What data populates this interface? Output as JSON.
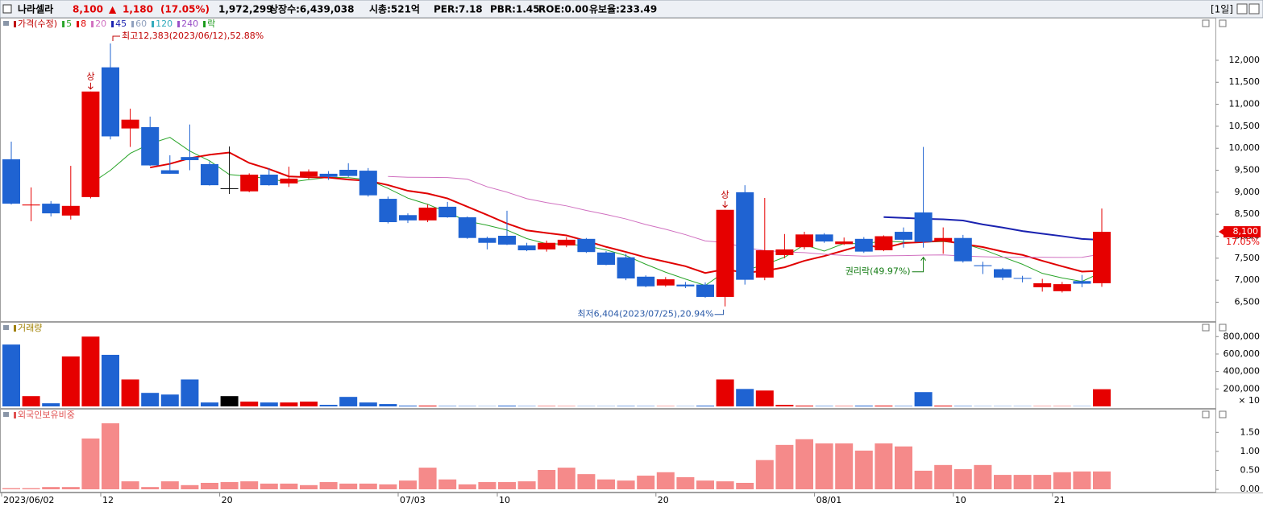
{
  "header": {
    "name": "나라셀라",
    "price": "8,100",
    "arrow": "▲",
    "change": "1,180",
    "change_pct": "(17.05%)",
    "volume": "1,972,299",
    "listed": "상장수:6,439,038",
    "market_cap": "시총:521억",
    "per": "PER:7.18",
    "pbr": "PBR:1.45",
    "roe": "ROE:0.00",
    "retention": "유보율:233.49",
    "period": "[1일]"
  },
  "chart_data": [
    {
      "type": "candlestick",
      "title": "가격(수정)",
      "categories": [
        "2023/06/02",
        null,
        null,
        null,
        null,
        "12",
        null,
        null,
        null,
        null,
        null,
        "20",
        null,
        null,
        null,
        null,
        null,
        null,
        null,
        null,
        "07/03",
        null,
        null,
        null,
        null,
        "10",
        null,
        null,
        null,
        null,
        null,
        null,
        null,
        "20",
        null,
        null,
        null,
        null,
        null,
        null,
        null,
        "08/01",
        null,
        null,
        null,
        null,
        null,
        null,
        "10",
        null,
        null,
        null,
        null,
        "21",
        null,
        null
      ],
      "open": [
        9750,
        8700,
        8740,
        8470,
        8890,
        11840,
        10450,
        10480,
        9500,
        9800,
        9640,
        9090,
        9020,
        9400,
        9200,
        9360,
        9420,
        9510,
        9490,
        8850,
        8480,
        8360,
        8670,
        8430,
        7960,
        8010,
        7790,
        7700,
        7790,
        7940,
        7630,
        7520,
        7080,
        6880,
        6900,
        6900,
        6620,
        9000,
        7060,
        7570,
        7750,
        8040,
        7820,
        7940,
        7680,
        8100,
        8540,
        7880,
        7960,
        7340,
        7250,
        7050,
        6840,
        6750,
        6980,
        6930
      ],
      "high": [
        10150,
        9110,
        8800,
        9600,
        11290,
        12383,
        10900,
        10720,
        9840,
        10540,
        9700,
        10040,
        9430,
        9550,
        9580,
        9520,
        9480,
        9660,
        9550,
        8900,
        8520,
        8720,
        8780,
        8450,
        7990,
        8580,
        7850,
        7900,
        7980,
        7960,
        7660,
        7600,
        7110,
        7070,
        6960,
        6950,
        8600,
        9160,
        8870,
        8050,
        8100,
        8070,
        7970,
        7980,
        8020,
        8200,
        10030,
        8200,
        8030,
        7420,
        7280,
        7100,
        7030,
        6960,
        7120,
        8630
      ],
      "low": [
        8720,
        8340,
        8450,
        8380,
        8860,
        10200,
        10030,
        9600,
        9420,
        9500,
        9150,
        8960,
        9000,
        9150,
        9120,
        9300,
        9280,
        9350,
        8900,
        8290,
        8300,
        8320,
        8420,
        7940,
        7700,
        7800,
        7660,
        7650,
        7750,
        7620,
        7340,
        7000,
        6840,
        6850,
        6820,
        6600,
        6404,
        6900,
        7000,
        7500,
        7700,
        7850,
        7800,
        7620,
        7660,
        7740,
        7740,
        7600,
        7400,
        7140,
        7000,
        6950,
        6740,
        6720,
        6840,
        6850
      ],
      "close": [
        8740,
        8720,
        8520,
        8690,
        11290,
        10270,
        10650,
        9610,
        9420,
        9730,
        9160,
        9090,
        9400,
        9160,
        9310,
        9470,
        9350,
        9370,
        8930,
        8320,
        8360,
        8650,
        8430,
        7960,
        7850,
        7810,
        7680,
        7850,
        7920,
        7640,
        7350,
        7040,
        6860,
        7020,
        6860,
        6620,
        8600,
        7010,
        7680,
        7700,
        8040,
        7880,
        7880,
        7650,
        8000,
        7920,
        7870,
        7960,
        7430,
        7320,
        7060,
        7040,
        6930,
        6910,
        6920,
        8100
      ],
      "up_color": "#e60000",
      "down_color": "#1f63d2",
      "flat_color": "#000000",
      "title_color": "#c00000",
      "moving_averages": [
        {
          "period": 5,
          "color": "#2aa52a",
          "width": 1
        },
        {
          "period": 8,
          "color": "#e00000",
          "width": 2
        },
        {
          "period": 20,
          "color": "#d070c0",
          "width": 1
        },
        {
          "period": 45,
          "color": "#1a22b0",
          "width": 2
        },
        {
          "period": 60,
          "color": "#8fa0bd",
          "width": 1
        },
        {
          "period": 120,
          "color": "#30aabb",
          "width": 1
        },
        {
          "period": 240,
          "color": "#9a50c8",
          "width": 1
        }
      ],
      "ex_rights_label": "락",
      "ex_rights_color": "#1a9a1a",
      "ylim": [
        6070,
        12950
      ],
      "yticks": [
        {
          "value": 6500,
          "label": "6,500"
        },
        {
          "value": 7000,
          "label": "7,000"
        },
        {
          "value": 7500,
          "label": "7,500"
        },
        {
          "value": 8000,
          "label": "8,000"
        },
        {
          "value": 8500,
          "label": "8,500"
        },
        {
          "value": 9000,
          "label": "9,000"
        },
        {
          "value": 9500,
          "label": "9,500"
        },
        {
          "value": 10000,
          "label": "10,000"
        },
        {
          "value": 10500,
          "label": "10,500"
        },
        {
          "value": 11000,
          "label": "11,000"
        },
        {
          "value": 11500,
          "label": "11,500"
        },
        {
          "value": 12000,
          "label": "12,000"
        }
      ],
      "current_price": {
        "value": 8100,
        "label": "8,100",
        "change": "17.05%"
      },
      "annotations": [
        {
          "kind": "high",
          "index": 5,
          "text": "최고12,383(2023/06/12),52.88%",
          "color": "#c00000"
        },
        {
          "kind": "limit",
          "index": 4,
          "text": "상",
          "color": "#c00000"
        },
        {
          "kind": "limit",
          "index": 36,
          "text": "상",
          "color": "#c00000"
        },
        {
          "kind": "low",
          "index": 36,
          "text": "최저6,404(2023/07/25),20.94%",
          "color": "#2a5aa8"
        },
        {
          "kind": "ex-rights",
          "index": 46,
          "text": "권리락(49.97%)",
          "color": "#107a10"
        }
      ]
    },
    {
      "type": "bar",
      "title": "거래량",
      "title_color": "#a08000",
      "values": [
        709000,
        118000,
        36000,
        573000,
        800000,
        591000,
        309000,
        155000,
        136000,
        309000,
        45000,
        118000,
        55000,
        45000,
        45000,
        55000,
        18000,
        109000,
        45000,
        27000,
        9000,
        9000,
        5000,
        4000,
        3000,
        9000,
        4000,
        4000,
        3000,
        3000,
        3000,
        5000,
        4000,
        3000,
        3000,
        9000,
        309000,
        200000,
        182000,
        18000,
        9000,
        5000,
        4000,
        9000,
        9000,
        5000,
        164000,
        9000,
        5000,
        3000,
        3000,
        3000,
        3000,
        3000,
        3000,
        197000
      ],
      "ylim": [
        0,
        950000
      ],
      "yticks": [
        {
          "value": 200000,
          "label": "200,000"
        },
        {
          "value": 400000,
          "label": "400,000"
        },
        {
          "value": 600000,
          "label": "600,000"
        },
        {
          "value": 800000,
          "label": "800,000"
        }
      ],
      "unit_label": "× 10"
    },
    {
      "type": "bar",
      "title": "외국인보유비중",
      "title_color": "#e05050",
      "color": "#f58a8a",
      "values": [
        0.03,
        0.03,
        0.06,
        0.06,
        1.34,
        1.74,
        0.21,
        0.06,
        0.21,
        0.11,
        0.17,
        0.19,
        0.21,
        0.15,
        0.15,
        0.11,
        0.19,
        0.15,
        0.15,
        0.13,
        0.23,
        0.57,
        0.26,
        0.13,
        0.19,
        0.19,
        0.21,
        0.51,
        0.57,
        0.4,
        0.26,
        0.23,
        0.36,
        0.45,
        0.32,
        0.23,
        0.21,
        0.17,
        0.77,
        1.17,
        1.32,
        1.21,
        1.21,
        1.02,
        1.21,
        1.13,
        0.49,
        0.64,
        0.53,
        0.64,
        0.38,
        0.38,
        0.38,
        0.45,
        0.47,
        0.47
      ],
      "ylim": [
        0,
        2.1
      ],
      "yticks": [
        {
          "value": 0,
          "label": "0.00"
        },
        {
          "value": 0.5,
          "label": "0.50"
        },
        {
          "value": 1,
          "label": "1.00"
        },
        {
          "value": 1.5,
          "label": "1.50"
        }
      ]
    }
  ]
}
